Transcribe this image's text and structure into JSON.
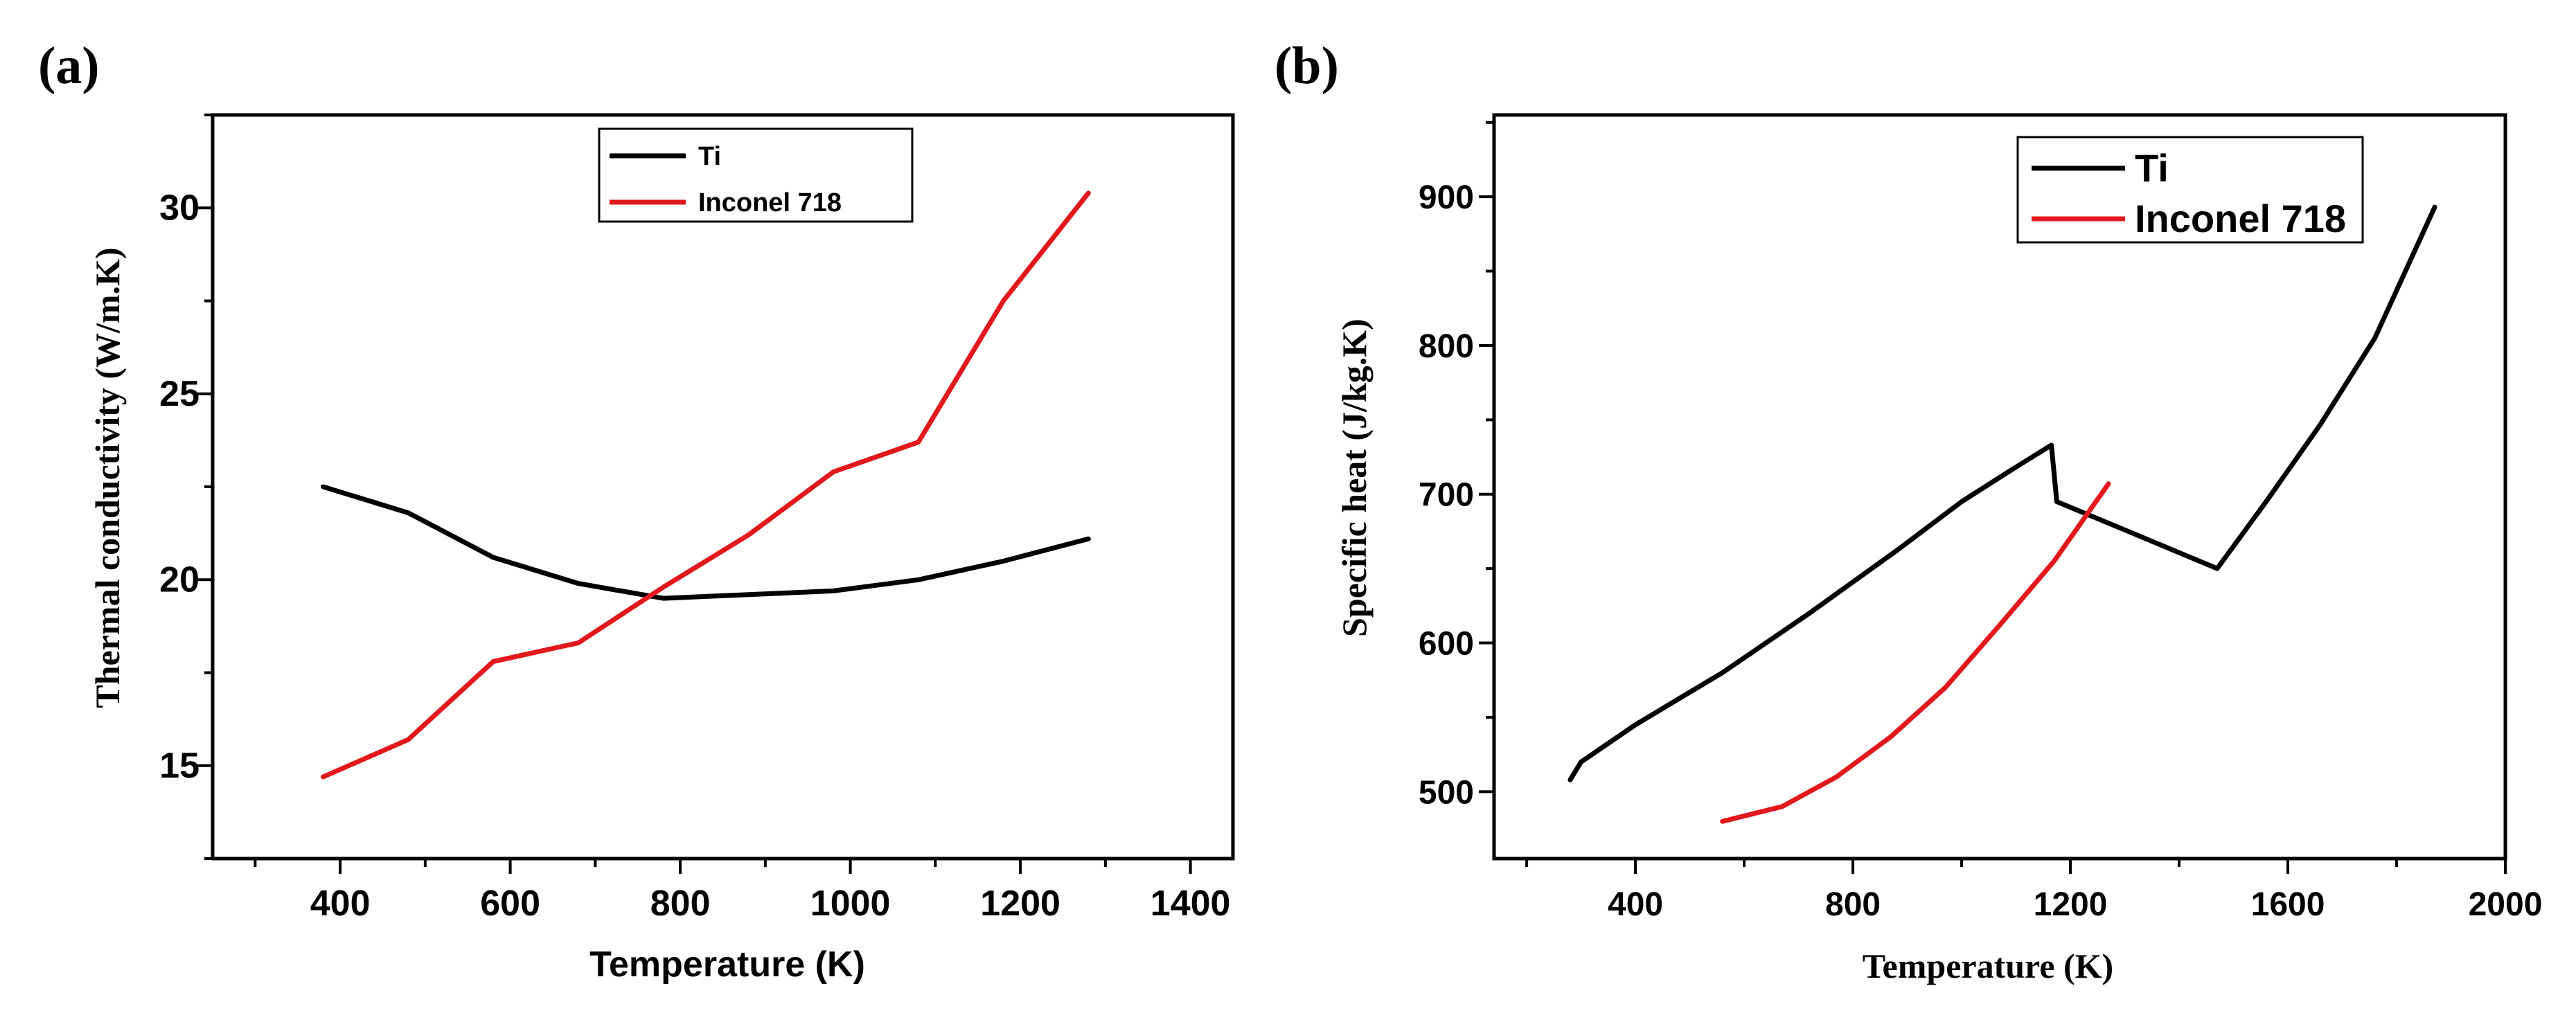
{
  "chart_data": [
    {
      "id": "a",
      "panel_label": "(a)",
      "type": "line",
      "title": "",
      "xlabel": "Temperature (K)",
      "ylabel": "Thermal conductivity (W/m.K)",
      "xlim": [
        250,
        1450
      ],
      "ylim": [
        12.5,
        32.5
      ],
      "x_ticks": [
        400,
        600,
        800,
        1000,
        1200,
        1400
      ],
      "y_ticks": [
        15,
        20,
        25,
        30
      ],
      "grid": false,
      "legend_position": "top-center",
      "series": [
        {
          "name": "Ti",
          "color": "#000000",
          "x": [
            380,
            480,
            580,
            680,
            780,
            880,
            980,
            1080,
            1180,
            1280
          ],
          "y": [
            22.5,
            21.8,
            20.6,
            19.9,
            19.5,
            19.6,
            19.7,
            20.0,
            20.5,
            21.1
          ]
        },
        {
          "name": "Inconel 718",
          "color": "#e3181c",
          "x": [
            380,
            480,
            580,
            680,
            780,
            880,
            980,
            1080,
            1180,
            1280
          ],
          "y": [
            14.7,
            15.7,
            17.8,
            18.3,
            19.8,
            21.2,
            22.9,
            23.7,
            27.5,
            30.4
          ]
        }
      ]
    },
    {
      "id": "b",
      "panel_label": "(b)",
      "type": "line",
      "title": "",
      "xlabel": "Temperature (K)",
      "ylabel": "Specific heat (J/kg.K)",
      "xlim": [
        140,
        2000
      ],
      "ylim": [
        455,
        955
      ],
      "x_ticks": [
        400,
        800,
        1200,
        1600,
        2000
      ],
      "y_ticks": [
        500,
        600,
        700,
        800,
        900
      ],
      "grid": false,
      "legend_position": "top-right",
      "series": [
        {
          "name": "Ti",
          "color": "#000000",
          "x": [
            280,
            300,
            400,
            560,
            720,
            880,
            1000,
            1090,
            1165,
            1175,
            1300,
            1470,
            1560,
            1660,
            1760,
            1870
          ],
          "y": [
            508,
            520,
            545,
            580,
            620,
            662,
            695,
            716,
            733,
            695,
            676,
            650,
            695,
            747,
            805,
            893
          ]
        },
        {
          "name": "Inconel 718",
          "color": "#e3181c",
          "x": [
            560,
            670,
            770,
            870,
            970,
            1070,
            1170,
            1270
          ],
          "y": [
            480,
            490,
            510,
            537,
            570,
            612,
            655,
            707
          ]
        }
      ]
    }
  ]
}
